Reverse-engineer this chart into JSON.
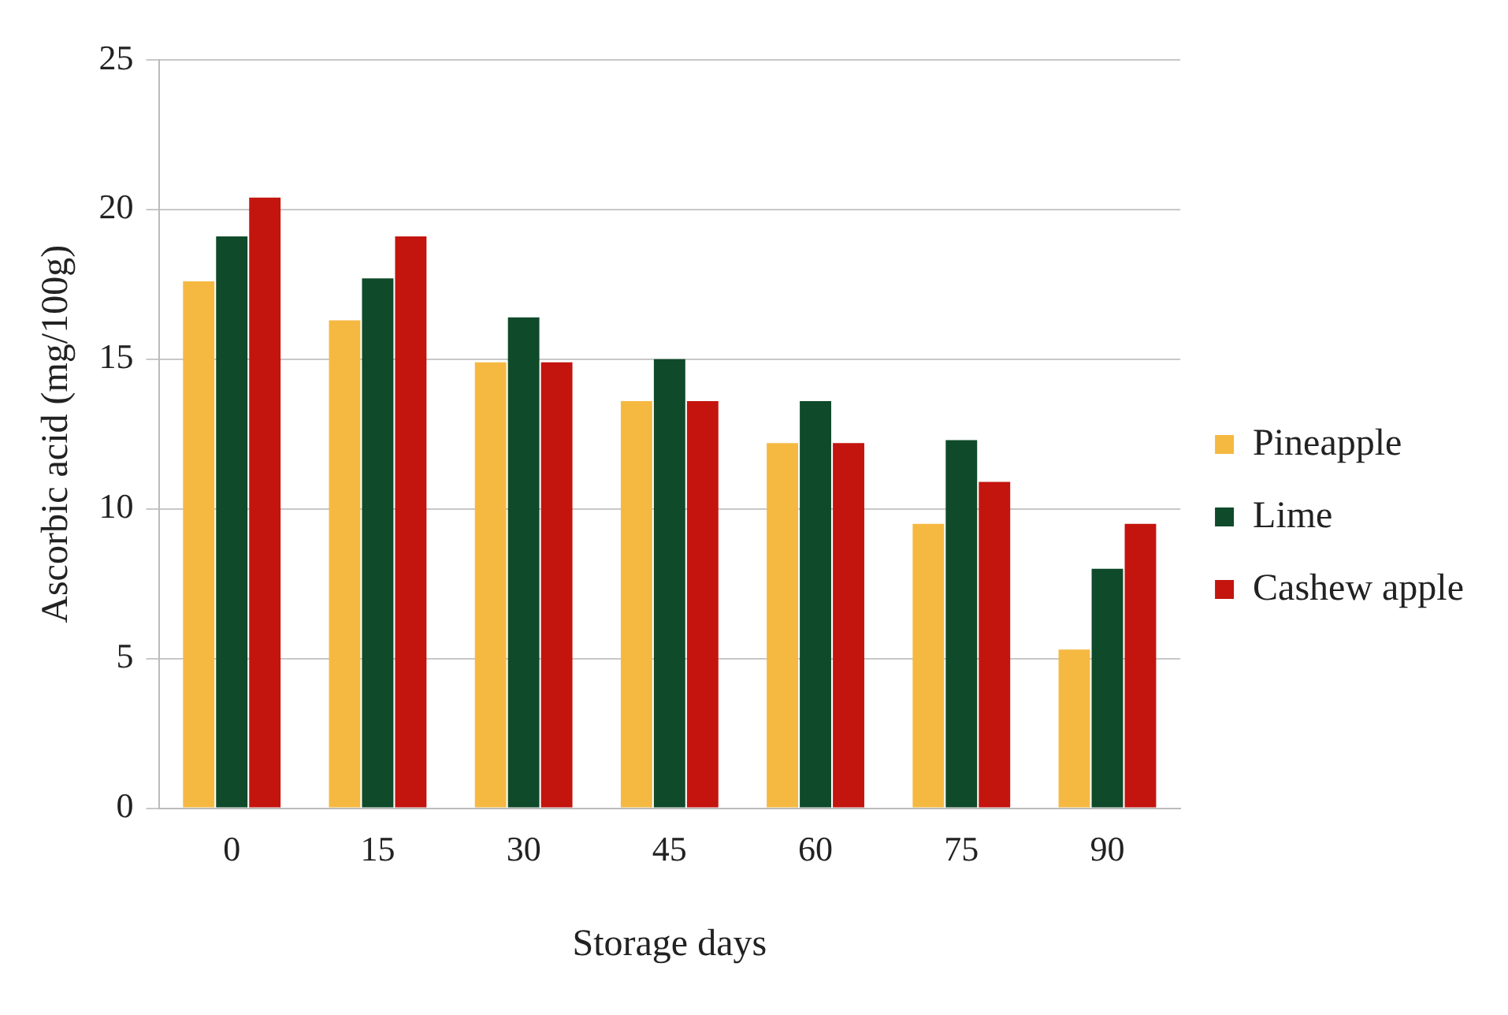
{
  "chart_data": {
    "type": "bar",
    "xlabel": "Storage days",
    "ylabel": "Ascorbic acid (mg/100g)",
    "categories": [
      "0",
      "15",
      "30",
      "45",
      "60",
      "75",
      "90"
    ],
    "series": [
      {
        "name": "Pineapple",
        "color": "#f5b942",
        "values": [
          17.6,
          16.3,
          14.9,
          13.6,
          12.2,
          9.5,
          5.3
        ]
      },
      {
        "name": "Lime",
        "color": "#0f4a2a",
        "values": [
          19.1,
          17.7,
          16.4,
          15.0,
          13.6,
          12.3,
          8.0
        ]
      },
      {
        "name": "Cashew apple",
        "color": "#c4140e",
        "values": [
          20.4,
          19.1,
          14.9,
          13.6,
          12.2,
          10.9,
          9.5
        ]
      }
    ],
    "ylim": [
      0,
      25
    ],
    "yticks": [
      0,
      5,
      10,
      15,
      20,
      25
    ],
    "grid": "y",
    "legend": "right"
  }
}
